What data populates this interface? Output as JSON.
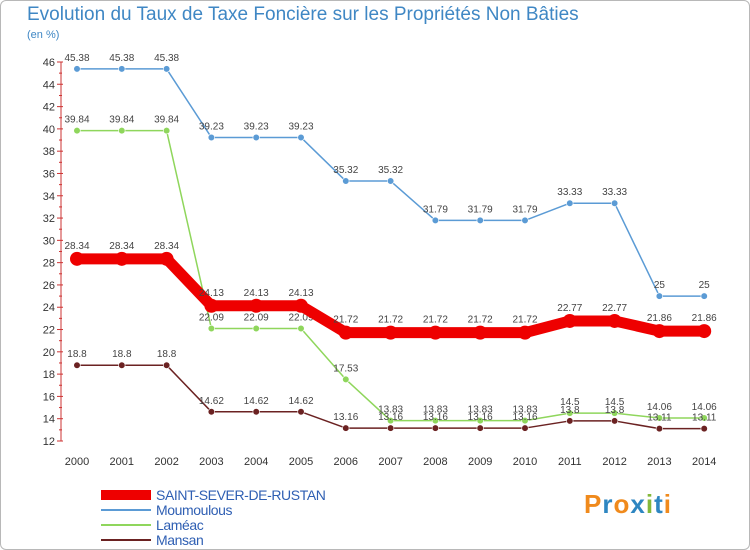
{
  "chart_data": {
    "type": "line",
    "title": "Evolution du Taux de Taxe Foncière sur les Propriétés Non Bâties",
    "ylabel": "(en %)",
    "xlabel": "",
    "categories": [
      "2000",
      "2001",
      "2002",
      "2003",
      "2004",
      "2005",
      "2006",
      "2007",
      "2008",
      "2009",
      "2010",
      "2011",
      "2012",
      "2013",
      "2014"
    ],
    "ylim": [
      12,
      46
    ],
    "yticks": [
      "12",
      "14",
      "16",
      "18",
      "20",
      "22",
      "24",
      "26",
      "28",
      "30",
      "32",
      "34",
      "36",
      "38",
      "40",
      "42",
      "44",
      "46"
    ],
    "series": [
      {
        "name": "Moumoulous",
        "color": "#5b9bd5",
        "values": [
          45.38,
          45.38,
          45.38,
          39.23,
          39.23,
          39.23,
          35.32,
          35.32,
          31.79,
          31.79,
          31.79,
          33.33,
          33.33,
          25,
          25
        ],
        "labels": [
          "45.38",
          "45.38",
          "45.38",
          "39.23",
          "39.23",
          "39.23",
          "35.32",
          "35.32",
          "31.79",
          "31.79",
          "31.79",
          "33.33",
          "33.33",
          "25",
          "25"
        ]
      },
      {
        "name": "Laméac",
        "color": "#8fd65c",
        "values": [
          39.84,
          39.84,
          39.84,
          22.09,
          22.09,
          22.09,
          17.53,
          13.83,
          13.83,
          13.83,
          13.83,
          14.5,
          14.5,
          14.06,
          14.06
        ],
        "labels": [
          "39.84",
          "39.84",
          "39.84",
          "22.09",
          "22.09",
          "22.09",
          "17.53",
          "13.83",
          "13.83",
          "13.83",
          "13.83",
          "14.5",
          "14.5",
          "14.06",
          "14.06"
        ]
      },
      {
        "name": "Mansan",
        "color": "#6b2222",
        "values": [
          18.8,
          18.8,
          18.8,
          14.62,
          14.62,
          14.62,
          13.16,
          13.16,
          13.16,
          13.16,
          13.16,
          13.8,
          13.8,
          13.11,
          13.11
        ],
        "labels": [
          "18.8",
          "18.8",
          "18.8",
          "14.62",
          "14.62",
          "14.62",
          "13.16",
          "13.16",
          "13.16",
          "13.16",
          "13.16",
          "13.8",
          "13.8",
          "13.11",
          "13.11"
        ]
      },
      {
        "name": "SAINT-SEVER-DE-RUSTAN",
        "color": "#ee0000",
        "values": [
          28.34,
          28.34,
          28.34,
          24.13,
          24.13,
          24.13,
          21.72,
          21.72,
          21.72,
          21.72,
          21.72,
          22.77,
          22.77,
          21.86,
          21.86
        ],
        "labels": [
          "28.34",
          "28.34",
          "28.34",
          "24.13",
          "24.13",
          "24.13",
          "21.72",
          "21.72",
          "21.72",
          "21.72",
          "21.72",
          "22.77",
          "22.77",
          "21.86",
          "21.86"
        ]
      }
    ],
    "legend_order": [
      "SAINT-SEVER-DE-RUSTAN",
      "Moumoulous",
      "Laméac",
      "Mansan"
    ],
    "legend_position": "bottom-left"
  },
  "logo": {
    "text": "Proxiti",
    "letters": [
      "P",
      "r",
      "o",
      "x",
      "i",
      "t",
      "i"
    ],
    "colors": [
      "#f08a1c",
      "#2e86c1",
      "#f08a1c",
      "#2e86c1",
      "#84b83a",
      "#2e86c1",
      "#f08a1c"
    ]
  }
}
